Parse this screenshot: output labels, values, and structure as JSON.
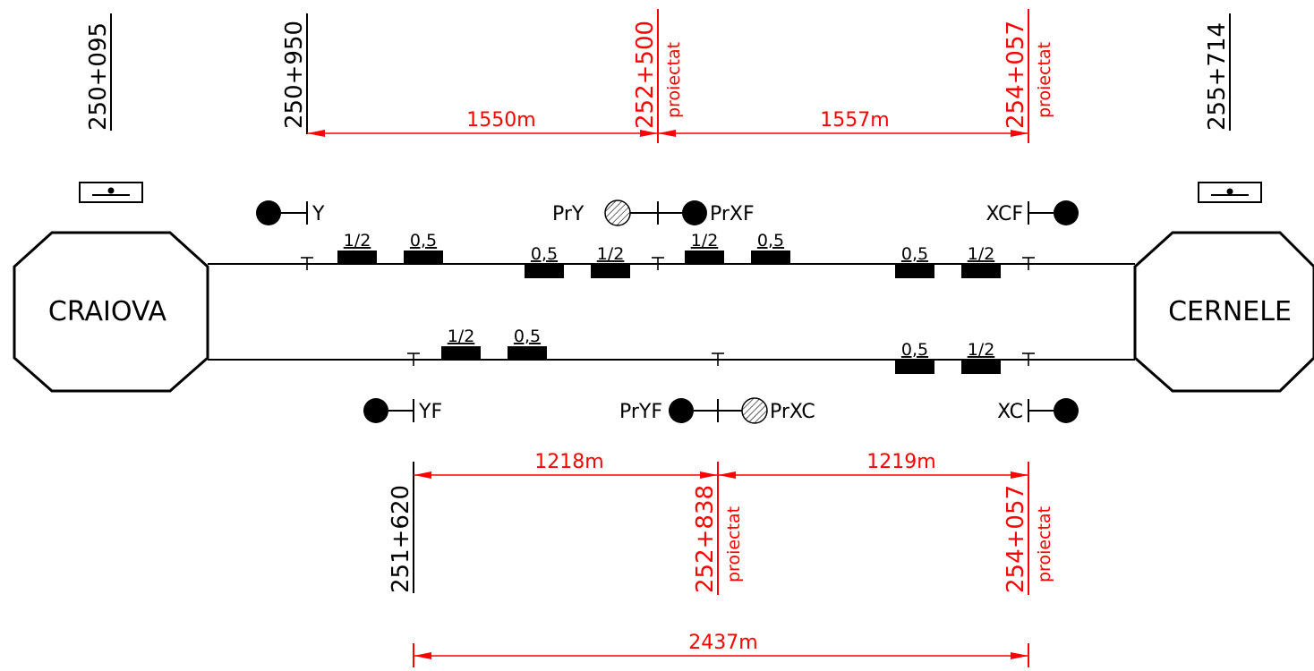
{
  "stations": {
    "left": "CRAIOVA",
    "right": "CERNELE"
  },
  "chainages": {
    "c250_095": "250+095",
    "c250_950": "250+950",
    "c252_500": "252+500",
    "c254_057_top": "254+057",
    "c255_714": "255+714",
    "c251_620": "251+620",
    "c252_838": "252+838",
    "c254_057_bottom": "254+057",
    "projected_label": "proiectat"
  },
  "distances": {
    "d1550": "1550m",
    "d1557": "1557m",
    "d1218": "1218m",
    "d1219": "1219m",
    "d2437": "2437m"
  },
  "signals": {
    "Y": "Y",
    "PrY": "PrY",
    "PrXF": "PrXF",
    "XCF": "XCF",
    "YF": "YF",
    "PrYF": "PrYF",
    "PrXC": "PrXC",
    "XC": "XC"
  },
  "markers": {
    "half": "1/2",
    "point_five": "0,5"
  },
  "colors": {
    "line": "#000000",
    "dimension": "#ff0000"
  }
}
